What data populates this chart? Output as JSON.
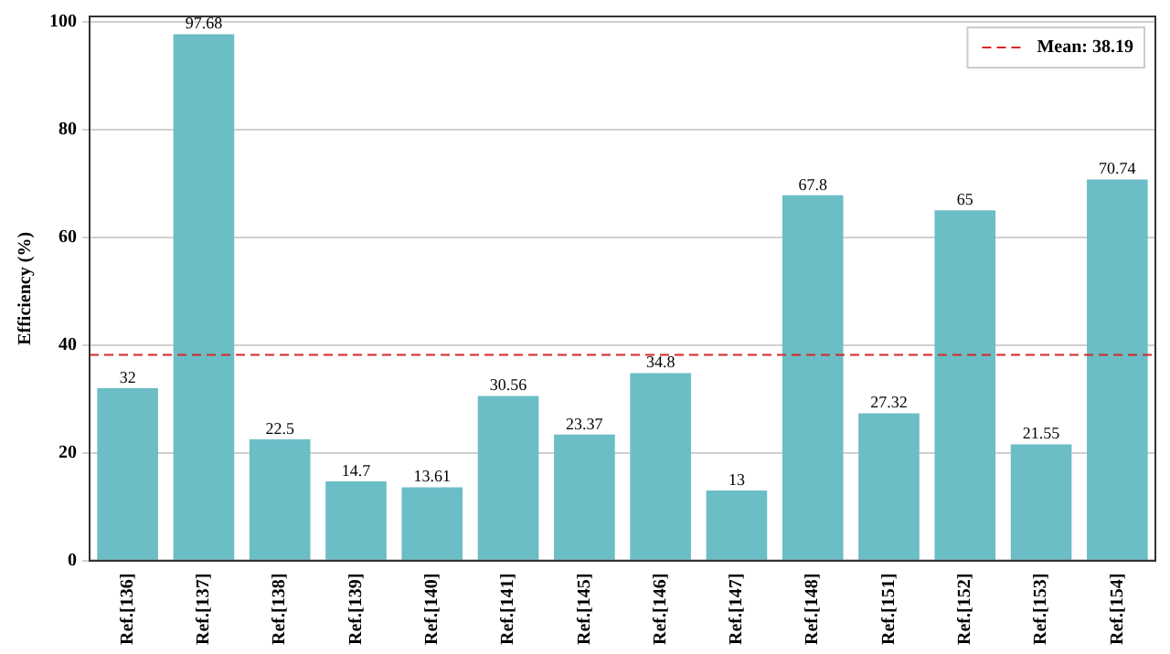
{
  "chart_data": {
    "type": "bar",
    "ylabel": "Efficiency (%)",
    "categories": [
      "Ref.[136]",
      "Ref.[137]",
      "Ref.[138]",
      "Ref.[139]",
      "Ref.[140]",
      "Ref.[141]",
      "Ref.[145]",
      "Ref.[146]",
      "Ref.[147]",
      "Ref.[148]",
      "Ref.[151]",
      "Ref.[152]",
      "Ref.[153]",
      "Ref.[154]"
    ],
    "values": [
      32,
      97.68,
      22.5,
      14.7,
      13.61,
      30.56,
      23.37,
      34.8,
      13,
      67.8,
      27.32,
      65,
      21.55,
      70.74
    ],
    "color": "#6bbdc6",
    "ylim": [
      0,
      101
    ],
    "yticks": [
      0,
      20,
      40,
      60,
      80,
      100
    ],
    "grid": "y",
    "data_labels": true,
    "ref_lines": [
      {
        "axis": "y",
        "value": 38.19,
        "label": "Mean: 38.19",
        "color": "#d62728",
        "line_style": "dashed"
      }
    ],
    "legend": "top right"
  }
}
